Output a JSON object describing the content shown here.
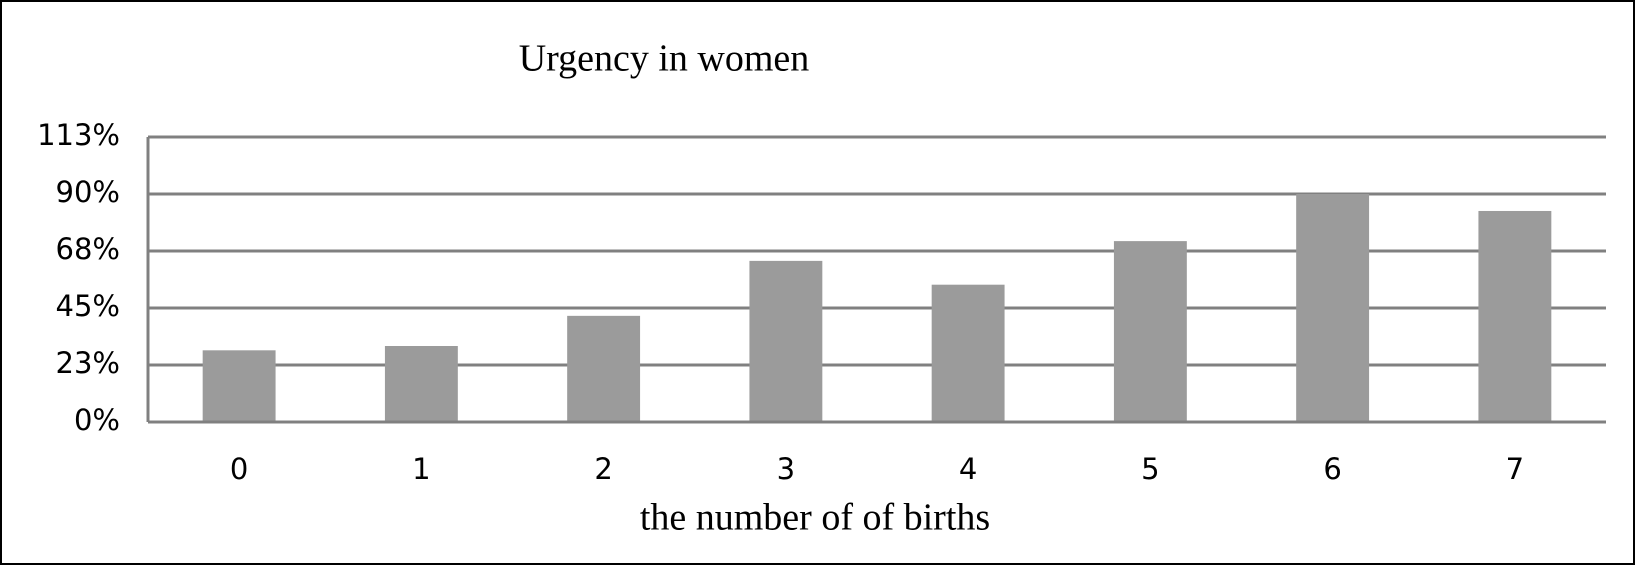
{
  "chart_data": {
    "type": "bar",
    "title": "Urgency in women",
    "x_label": "the number of of births",
    "categories": [
      "0",
      "1",
      "2",
      "3",
      "4",
      "5",
      "6",
      "7"
    ],
    "values": [
      28.3,
      30,
      41.9,
      63.6,
      54.2,
      71.4,
      90,
      83.3
    ],
    "color": "#9b9b9b",
    "ylim": [
      0,
      112.5
    ],
    "yticks": [
      {
        "value": 0,
        "label": "0%"
      },
      {
        "value": 22.5,
        "label": "23%"
      },
      {
        "value": 45,
        "label": "45%"
      },
      {
        "value": 67.5,
        "label": "68%"
      },
      {
        "value": 90,
        "label": "90%"
      },
      {
        "value": 112.5,
        "label": "113%"
      }
    ],
    "grid": true
  }
}
